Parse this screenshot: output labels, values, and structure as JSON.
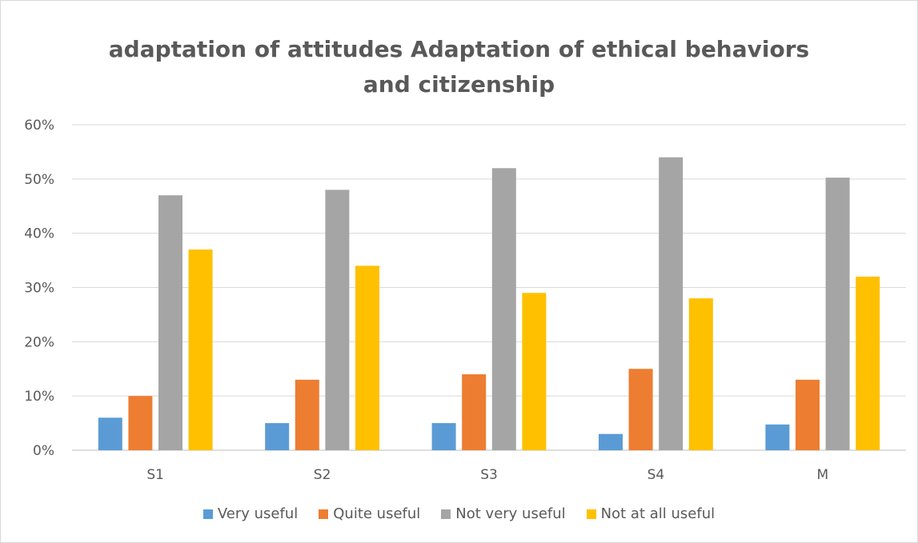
{
  "chart_data": {
    "type": "bar",
    "title_lines": [
      "adaptation of attitudes Adaptation of ethical behaviors",
      "and citizenship"
    ],
    "categories": [
      "S1",
      "S2",
      "S3",
      "S4",
      "M"
    ],
    "series": [
      {
        "name": "Very useful",
        "color": "#5b9bd5",
        "values": [
          6,
          5,
          5,
          3,
          4.75
        ]
      },
      {
        "name": "Quite useful",
        "color": "#ed7d31",
        "values": [
          10,
          13,
          14,
          15,
          13
        ]
      },
      {
        "name": "Not very useful",
        "color": "#a5a5a5",
        "values": [
          47,
          48,
          52,
          54,
          50.25
        ]
      },
      {
        "name": "Not at all useful",
        "color": "#ffc000",
        "values": [
          37,
          34,
          29,
          28,
          32
        ]
      }
    ],
    "y_ticks": [
      "0%",
      "10%",
      "20%",
      "30%",
      "40%",
      "50%",
      "60%"
    ],
    "ylim": [
      0,
      60
    ],
    "y_unit": "%",
    "grid": true,
    "legend_position": "bottom"
  }
}
